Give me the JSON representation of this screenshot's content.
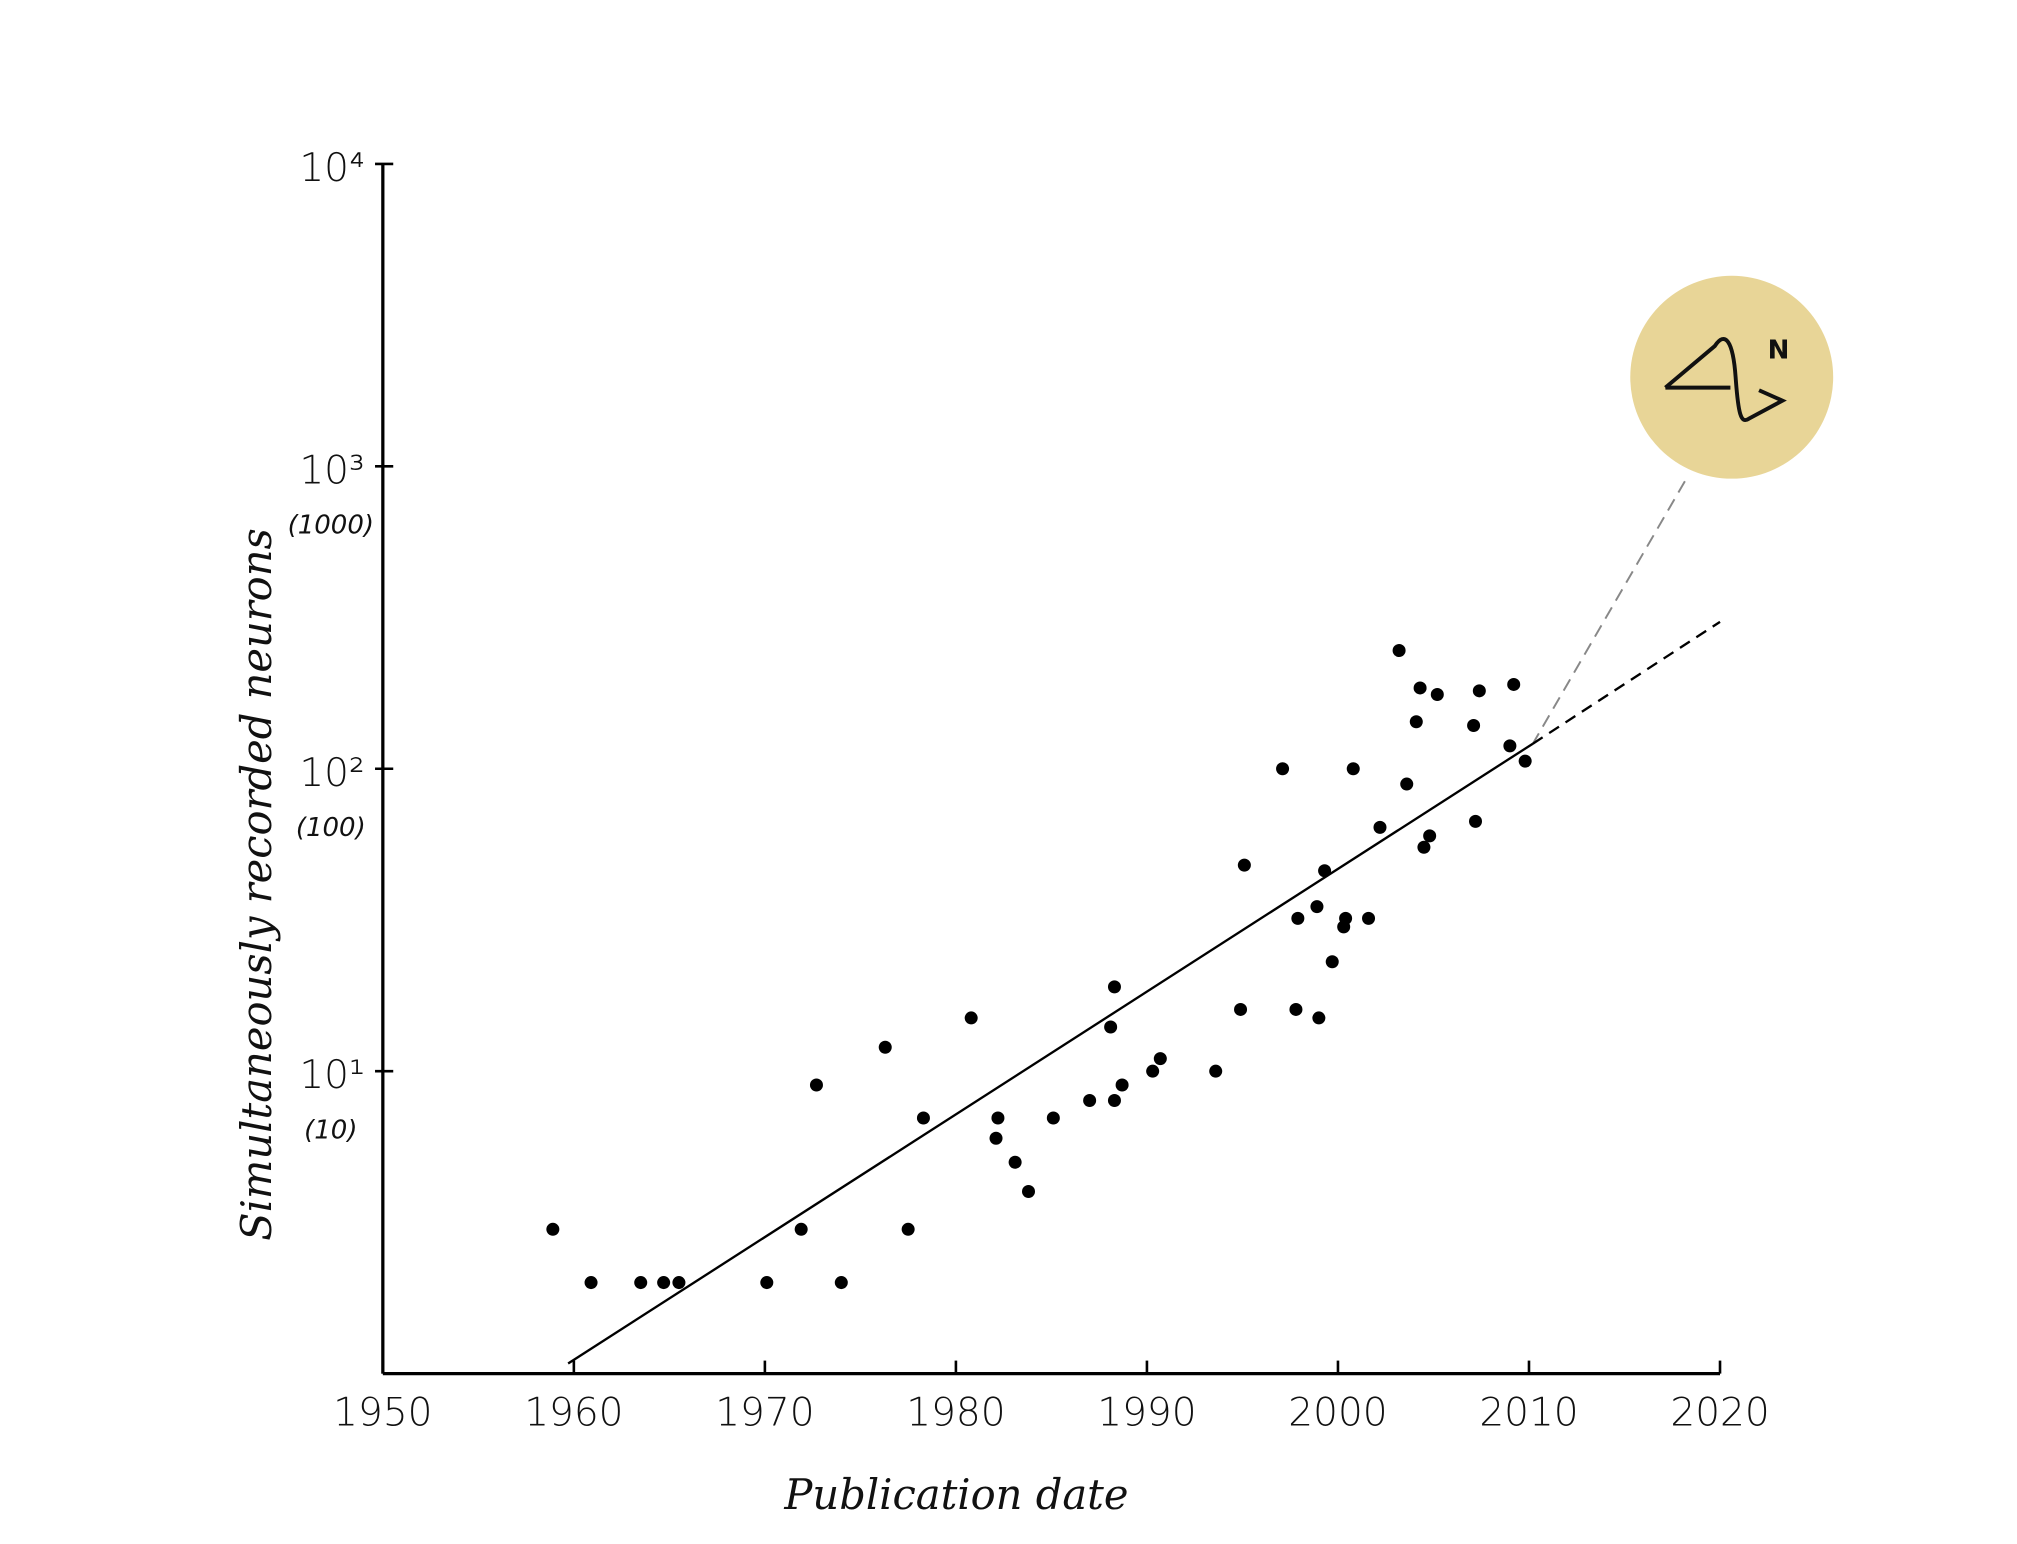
{
  "chart_data": {
    "type": "scatter",
    "x_label": "Publication date",
    "y_label": "Simultaneously recorded neurons",
    "yscale": "log",
    "xlim": [
      1950,
      2020
    ],
    "ylim": [
      1,
      10000
    ],
    "xticks": [
      1950,
      1960,
      1970,
      1980,
      1990,
      2000,
      2010,
      2020
    ],
    "yticks": [
      {
        "value": 10,
        "label": "10¹"
      },
      {
        "value": 100,
        "label": "10²"
      },
      {
        "value": 1000,
        "label": "10³"
      },
      {
        "value": 10000,
        "label": "10⁴"
      }
    ],
    "ytick_sublabels": [
      "(10)",
      "(100)",
      "(1000)",
      null
    ],
    "color": "#000000",
    "x": [
      1958.9,
      1960.9,
      1963.5,
      1964.7,
      1965.5,
      1970.1,
      1971.9,
      1974.0,
      1972.7,
      1976.3,
      1977.5,
      1978.3,
      1980.8,
      1982.2,
      1982.1,
      1983.1,
      1983.8,
      1985.1,
      1987.0,
      1988.3,
      1988.1,
      1988.3,
      1988.7,
      1990.3,
      1990.7,
      1993.6,
      1994.9,
      1995.1,
      1997.1,
      1997.8,
      1997.9,
      1998.9,
      1999.0,
      1999.3,
      1999.7,
      2000.3,
      2000.4,
      2000.8,
      2001.6,
      2002.2,
      2003.2,
      2003.6,
      2004.1,
      2004.3,
      2004.5,
      2004.8,
      2005.2,
      2007.1,
      2007.2,
      2007.4,
      2009.0,
      2009.2,
      2009.8
    ],
    "values": [
      3,
      2,
      2,
      2,
      2,
      2,
      3,
      2,
      9,
      12,
      3,
      7,
      15,
      7,
      6,
      5,
      4,
      7,
      8,
      19,
      14,
      8,
      9,
      10,
      11,
      10,
      16,
      48,
      100,
      16,
      32,
      35,
      15,
      46,
      23,
      30,
      32,
      100,
      32,
      64,
      246,
      89,
      143,
      185,
      55,
      60,
      176,
      139,
      67,
      181,
      119,
      190,
      106
    ],
    "trend": {
      "x": [
        1959.7,
        2010.2
      ],
      "values": [
        1.08,
        121
      ]
    },
    "extrapolation": {
      "x": [
        2010.2,
        2020
      ],
      "values": [
        121,
        306
      ]
    },
    "logo_text": "N"
  }
}
